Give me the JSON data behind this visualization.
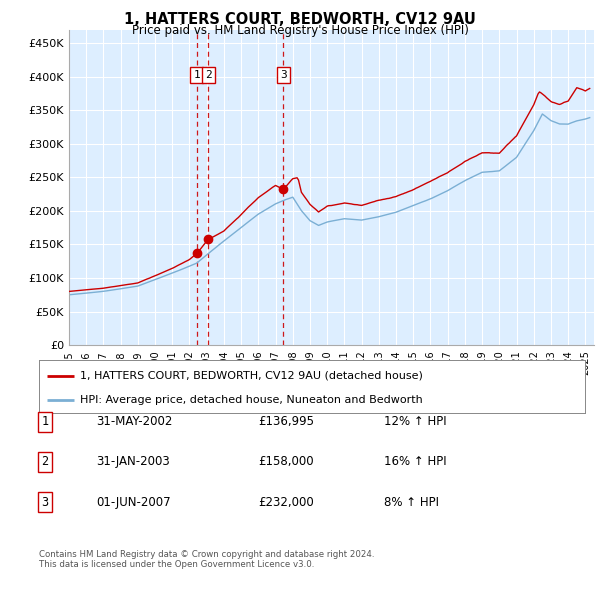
{
  "title": "1, HATTERS COURT, BEDWORTH, CV12 9AU",
  "subtitle": "Price paid vs. HM Land Registry's House Price Index (HPI)",
  "ylim": [
    0,
    470000
  ],
  "yticks": [
    0,
    50000,
    100000,
    150000,
    200000,
    250000,
    300000,
    350000,
    400000,
    450000
  ],
  "ytick_labels": [
    "£0",
    "£50K",
    "£100K",
    "£150K",
    "£200K",
    "£250K",
    "£300K",
    "£350K",
    "£400K",
    "£450K"
  ],
  "hpi_color": "#7bafd4",
  "price_color": "#cc0000",
  "sale_marker_color": "#cc0000",
  "vline_color": "#cc0000",
  "bg_color": "#ddeeff",
  "grid_color": "#ffffff",
  "sales": [
    {
      "date": 2002.42,
      "price": 136995,
      "label": "1"
    },
    {
      "date": 2003.08,
      "price": 158000,
      "label": "2"
    },
    {
      "date": 2007.46,
      "price": 232000,
      "label": "3"
    }
  ],
  "legend_entries": [
    {
      "label": "1, HATTERS COURT, BEDWORTH, CV12 9AU (detached house)",
      "color": "#cc0000"
    },
    {
      "label": "HPI: Average price, detached house, Nuneaton and Bedworth",
      "color": "#7bafd4"
    }
  ],
  "table_rows": [
    {
      "num": "1",
      "date": "31-MAY-2002",
      "price": "£136,995",
      "hpi": "12% ↑ HPI"
    },
    {
      "num": "2",
      "date": "31-JAN-2003",
      "price": "£158,000",
      "hpi": "16% ↑ HPI"
    },
    {
      "num": "3",
      "date": "01-JUN-2007",
      "price": "£232,000",
      "hpi": "8% ↑ HPI"
    }
  ],
  "footnote": "Contains HM Land Registry data © Crown copyright and database right 2024.\nThis data is licensed under the Open Government Licence v3.0.",
  "xlim_start": 1995.0,
  "xlim_end": 2025.5
}
